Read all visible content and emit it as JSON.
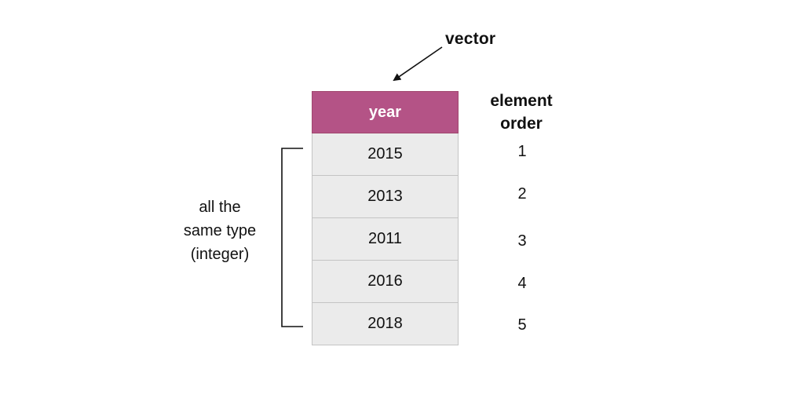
{
  "vector_label": "vector",
  "table": {
    "header": "year",
    "values": [
      "2015",
      "2013",
      "2011",
      "2016",
      "2018"
    ]
  },
  "order": {
    "title_line1": "element",
    "title_line2": "order",
    "numbers": [
      "1",
      "2",
      "3",
      "4",
      "5"
    ]
  },
  "type_note": {
    "line1": "all the",
    "line2": "same type",
    "line3": "(integer)"
  },
  "colors": {
    "header_bg": "#b45386",
    "cell_bg": "#ebebeb",
    "line": "#111111"
  }
}
